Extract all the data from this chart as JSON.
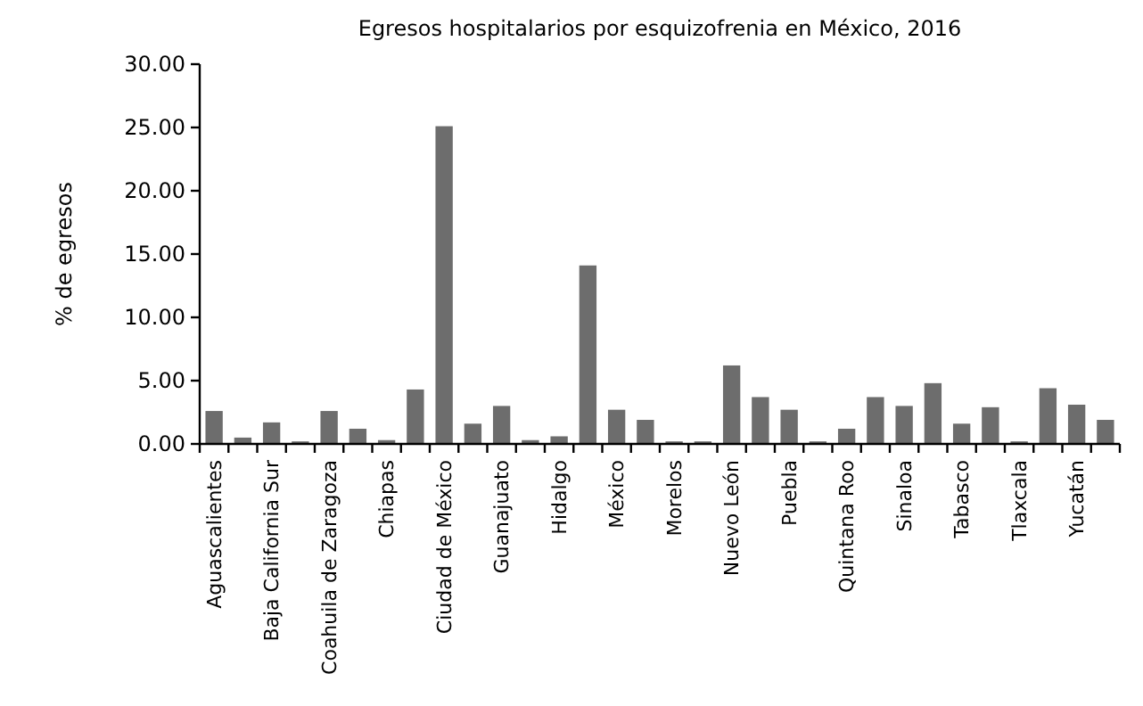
{
  "chart_data": {
    "type": "bar",
    "title": "Egresos hospitalarios por esquizofrenia en México, 2016",
    "ylabel": "% de egresos",
    "categories": [
      "Aguascalientes",
      null,
      "Baja California Sur",
      null,
      "Coahuila de Zaragoza",
      null,
      "Chiapas",
      null,
      "Ciudad de México",
      null,
      "Guanajuato",
      null,
      "Hidalgo",
      null,
      "México",
      null,
      "Morelos",
      null,
      "Nuevo León",
      null,
      "Puebla",
      null,
      "Quintana Roo",
      null,
      "Sinaloa",
      null,
      "Tabasco",
      null,
      "Tlaxcala",
      null,
      "Yucatán",
      null
    ],
    "values": [
      2.6,
      0.5,
      1.7,
      0.2,
      2.6,
      1.2,
      0.3,
      4.3,
      25.1,
      1.6,
      3.0,
      0.3,
      0.6,
      14.1,
      2.7,
      1.9,
      0.2,
      0.2,
      6.2,
      3.7,
      2.7,
      0.2,
      1.2,
      3.7,
      3.0,
      4.8,
      1.6,
      2.9,
      0.2,
      4.4,
      3.1,
      1.9
    ],
    "color": "#6d6d6d",
    "ylim": [
      0,
      30
    ],
    "yticks": [
      {
        "value": 0,
        "label": "0.00"
      },
      {
        "value": 5,
        "label": "5.00"
      },
      {
        "value": 10,
        "label": "10.00"
      },
      {
        "value": 15,
        "label": "15.00"
      },
      {
        "value": 20,
        "label": "20.00"
      },
      {
        "value": 25,
        "label": "25.00"
      },
      {
        "value": 30,
        "label": "30.00"
      }
    ],
    "grid": false
  }
}
